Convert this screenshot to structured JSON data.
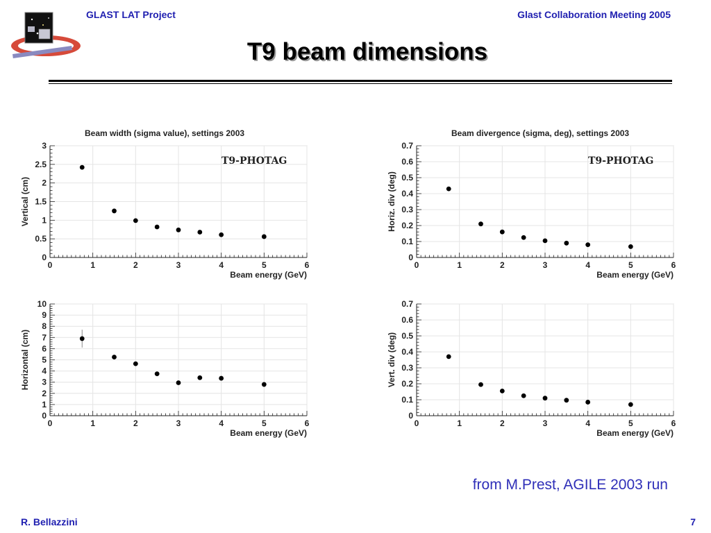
{
  "header": {
    "left": "GLAST LAT Project",
    "right": "Glast Collaboration Meeting 2005"
  },
  "slide": {
    "title": "T9 beam dimensions",
    "source": "from M.Prest, AGILE 2003 run"
  },
  "footer": {
    "author": "R. Bellazzini",
    "page": "7"
  },
  "colors": {
    "header_text": "#1f1fb0",
    "source_text": "#2f2fb8",
    "markers": "#000000"
  },
  "chart_data": [
    {
      "type": "scatter",
      "title": "Beam width (sigma value), settings 2003",
      "xlabel": "Beam energy (GeV)",
      "ylabel": "Vertical (cm)",
      "annotation": "T9-PHOTAG",
      "xlim": [
        0,
        6
      ],
      "ylim": [
        0,
        3
      ],
      "xticks": [
        "0",
        "1",
        "2",
        "3",
        "4",
        "5",
        "6"
      ],
      "yticks": [
        "0",
        "0.5",
        "1",
        "1.5",
        "2",
        "2.5",
        "3"
      ],
      "grid": true,
      "x": [
        0.75,
        1.5,
        2.0,
        2.5,
        3.0,
        3.5,
        4.0,
        5.0
      ],
      "y": [
        2.42,
        1.25,
        0.99,
        0.82,
        0.74,
        0.68,
        0.61,
        0.56
      ]
    },
    {
      "type": "scatter",
      "title": "Beam divergence (sigma, deg), settings 2003",
      "xlabel": "Beam energy (GeV)",
      "ylabel": "Horiz. div (deg)",
      "annotation": "T9-PHOTAG",
      "xlim": [
        0,
        6
      ],
      "ylim": [
        0,
        0.7
      ],
      "xticks": [
        "0",
        "1",
        "2",
        "3",
        "4",
        "5",
        "6"
      ],
      "yticks": [
        "0",
        "0.1",
        "0.2",
        "0.3",
        "0.4",
        "0.5",
        "0.6",
        "0.7"
      ],
      "grid": true,
      "x": [
        0.75,
        1.5,
        2.0,
        2.5,
        3.0,
        3.5,
        4.0,
        5.0
      ],
      "y": [
        0.43,
        0.21,
        0.16,
        0.125,
        0.105,
        0.09,
        0.08,
        0.068
      ]
    },
    {
      "type": "scatter",
      "title": "",
      "xlabel": "Beam energy (GeV)",
      "ylabel": "Horizontal (cm)",
      "annotation": "",
      "xlim": [
        0,
        6
      ],
      "ylim": [
        0,
        10
      ],
      "xticks": [
        "0",
        "1",
        "2",
        "3",
        "4",
        "5",
        "6"
      ],
      "yticks": [
        "0",
        "1",
        "2",
        "3",
        "4",
        "5",
        "6",
        "7",
        "8",
        "9",
        "10"
      ],
      "grid": true,
      "x": [
        0.75,
        1.5,
        2.0,
        2.5,
        3.0,
        3.5,
        4.0,
        5.0
      ],
      "y": [
        6.9,
        5.25,
        4.65,
        3.75,
        2.95,
        3.4,
        3.35,
        2.8
      ],
      "y_err": [
        0.8,
        0,
        0,
        0,
        0,
        0,
        0,
        0
      ]
    },
    {
      "type": "scatter",
      "title": "",
      "xlabel": "Beam energy (GeV)",
      "ylabel": "Vert. div (deg)",
      "annotation": "",
      "xlim": [
        0,
        6
      ],
      "ylim": [
        0,
        0.7
      ],
      "xticks": [
        "0",
        "1",
        "2",
        "3",
        "4",
        "5",
        "6"
      ],
      "yticks": [
        "0",
        "0.1",
        "0.2",
        "0.3",
        "0.4",
        "0.5",
        "0.6",
        "0.7"
      ],
      "grid": true,
      "x": [
        0.75,
        1.5,
        2.0,
        2.5,
        3.0,
        3.5,
        4.0,
        5.0
      ],
      "y": [
        0.37,
        0.195,
        0.155,
        0.125,
        0.11,
        0.097,
        0.085,
        0.07
      ]
    }
  ]
}
